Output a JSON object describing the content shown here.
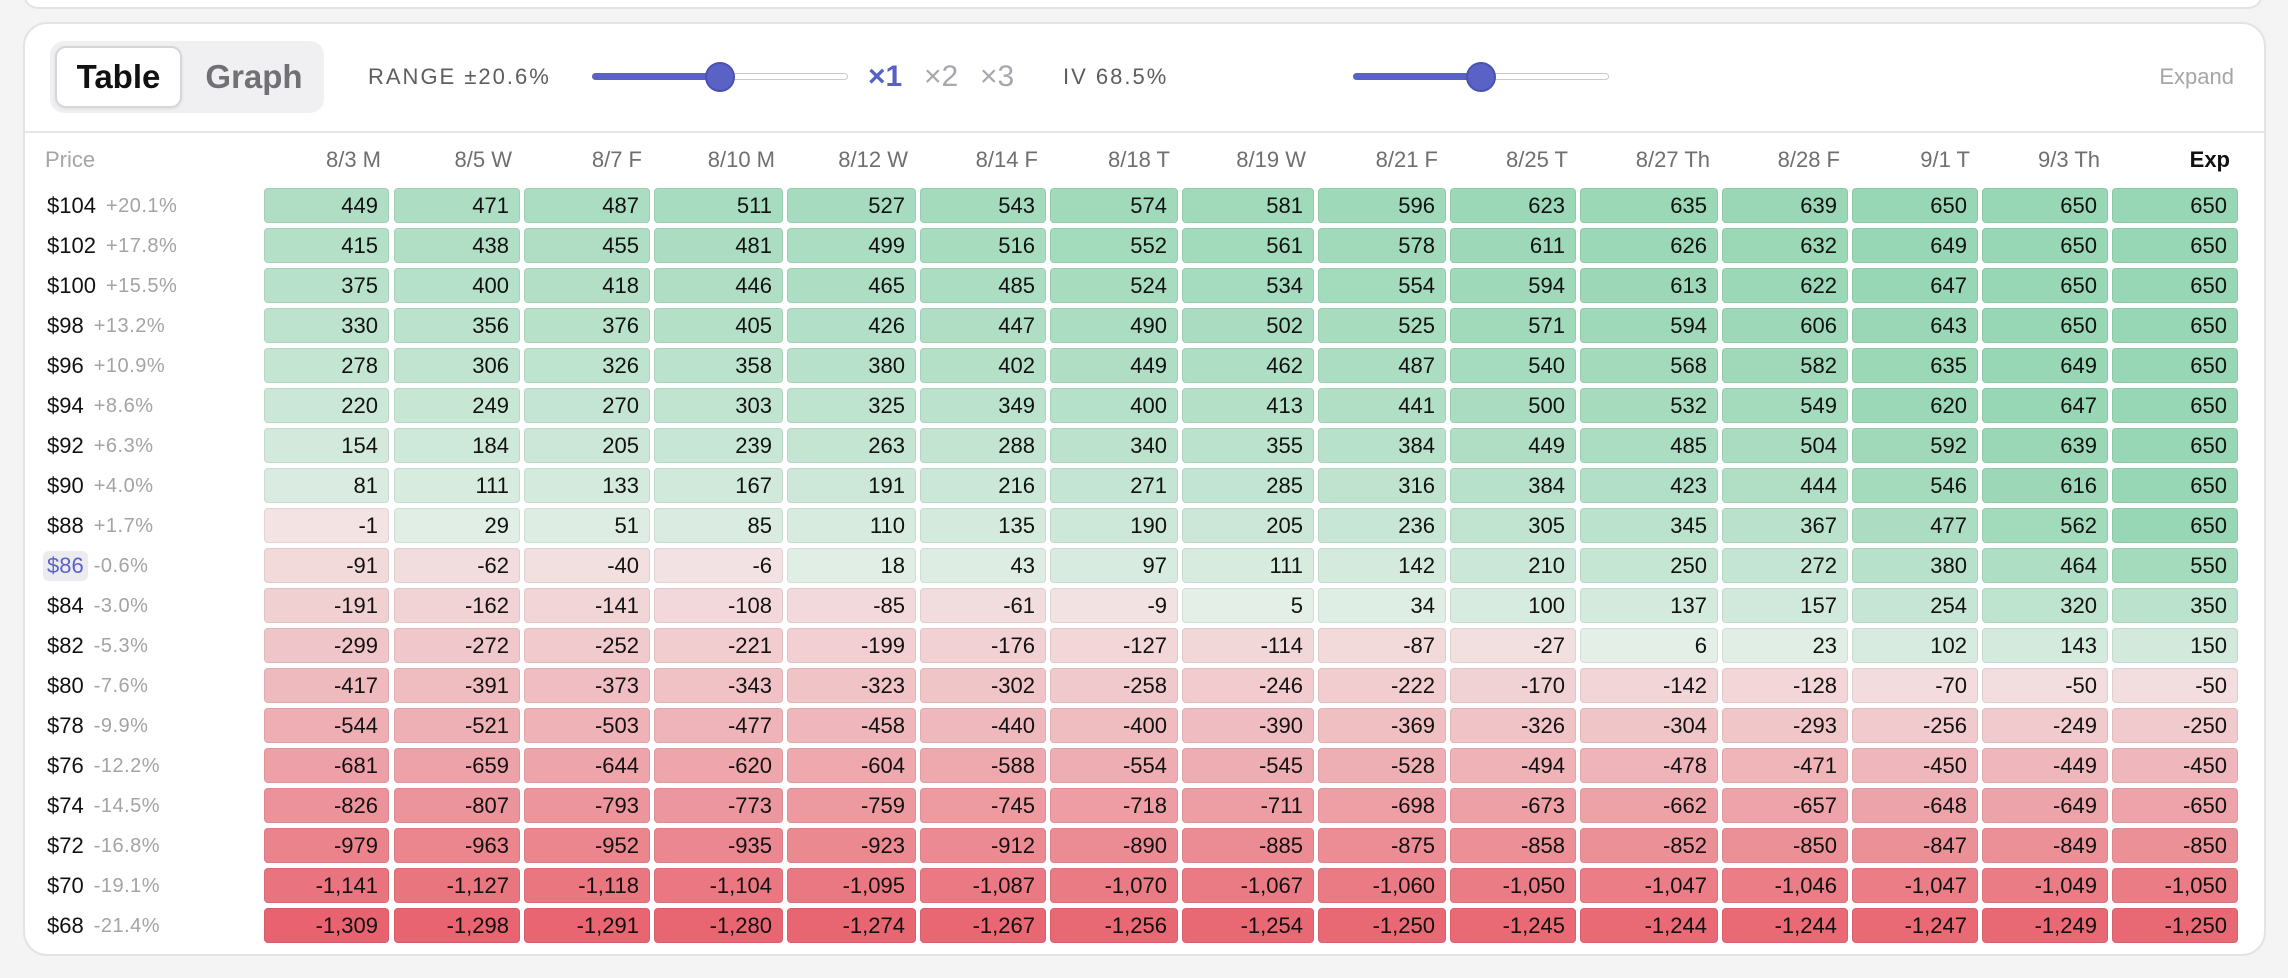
{
  "toolbar": {
    "tabs": [
      "Table",
      "Graph"
    ],
    "range_label": "RANGE ±20.6%",
    "range_level": 0.5,
    "multipliers": [
      "×1",
      "×2",
      "×3"
    ],
    "iv_label": "IV 68.5%",
    "iv_level": 0.5,
    "expand_label": "Expand",
    "accent_color": "#5b62c6"
  },
  "table": {
    "price_header": "Price",
    "current_price": "$86",
    "positive_color": "#98d7b5",
    "negative_color": "#e8636f",
    "columns": [
      "8/3 M",
      "8/5 W",
      "8/7 F",
      "8/10 M",
      "8/12 W",
      "8/14 F",
      "8/18 T",
      "8/19 W",
      "8/21 F",
      "8/25 T",
      "8/27 Th",
      "8/28 F",
      "9/1 T",
      "9/3 Th",
      "Exp"
    ],
    "rows": [
      {
        "price": "$104",
        "pct": "+20.1%",
        "values": [
          "449",
          "471",
          "487",
          "511",
          "527",
          "543",
          "574",
          "581",
          "596",
          "623",
          "635",
          "639",
          "650",
          "650",
          "650"
        ]
      },
      {
        "price": "$102",
        "pct": "+17.8%",
        "values": [
          "415",
          "438",
          "455",
          "481",
          "499",
          "516",
          "552",
          "561",
          "578",
          "611",
          "626",
          "632",
          "649",
          "650",
          "650"
        ]
      },
      {
        "price": "$100",
        "pct": "+15.5%",
        "values": [
          "375",
          "400",
          "418",
          "446",
          "465",
          "485",
          "524",
          "534",
          "554",
          "594",
          "613",
          "622",
          "647",
          "650",
          "650"
        ]
      },
      {
        "price": "$98",
        "pct": "+13.2%",
        "values": [
          "330",
          "356",
          "376",
          "405",
          "426",
          "447",
          "490",
          "502",
          "525",
          "571",
          "594",
          "606",
          "643",
          "650",
          "650"
        ]
      },
      {
        "price": "$96",
        "pct": "+10.9%",
        "values": [
          "278",
          "306",
          "326",
          "358",
          "380",
          "402",
          "449",
          "462",
          "487",
          "540",
          "568",
          "582",
          "635",
          "649",
          "650"
        ]
      },
      {
        "price": "$94",
        "pct": "+8.6%",
        "values": [
          "220",
          "249",
          "270",
          "303",
          "325",
          "349",
          "400",
          "413",
          "441",
          "500",
          "532",
          "549",
          "620",
          "647",
          "650"
        ]
      },
      {
        "price": "$92",
        "pct": "+6.3%",
        "values": [
          "154",
          "184",
          "205",
          "239",
          "263",
          "288",
          "340",
          "355",
          "384",
          "449",
          "485",
          "504",
          "592",
          "639",
          "650"
        ]
      },
      {
        "price": "$90",
        "pct": "+4.0%",
        "values": [
          "81",
          "111",
          "133",
          "167",
          "191",
          "216",
          "271",
          "285",
          "316",
          "384",
          "423",
          "444",
          "546",
          "616",
          "650"
        ]
      },
      {
        "price": "$88",
        "pct": "+1.7%",
        "values": [
          "-1",
          "29",
          "51",
          "85",
          "110",
          "135",
          "190",
          "205",
          "236",
          "305",
          "345",
          "367",
          "477",
          "562",
          "650"
        ]
      },
      {
        "price": "$86",
        "pct": "-0.6%",
        "values": [
          "-91",
          "-62",
          "-40",
          "-6",
          "18",
          "43",
          "97",
          "111",
          "142",
          "210",
          "250",
          "272",
          "380",
          "464",
          "550"
        ]
      },
      {
        "price": "$84",
        "pct": "-3.0%",
        "values": [
          "-191",
          "-162",
          "-141",
          "-108",
          "-85",
          "-61",
          "-9",
          "5",
          "34",
          "100",
          "137",
          "157",
          "254",
          "320",
          "350"
        ]
      },
      {
        "price": "$82",
        "pct": "-5.3%",
        "values": [
          "-299",
          "-272",
          "-252",
          "-221",
          "-199",
          "-176",
          "-127",
          "-114",
          "-87",
          "-27",
          "6",
          "23",
          "102",
          "143",
          "150"
        ]
      },
      {
        "price": "$80",
        "pct": "-7.6%",
        "values": [
          "-417",
          "-391",
          "-373",
          "-343",
          "-323",
          "-302",
          "-258",
          "-246",
          "-222",
          "-170",
          "-142",
          "-128",
          "-70",
          "-50",
          "-50"
        ]
      },
      {
        "price": "$78",
        "pct": "-9.9%",
        "values": [
          "-544",
          "-521",
          "-503",
          "-477",
          "-458",
          "-440",
          "-400",
          "-390",
          "-369",
          "-326",
          "-304",
          "-293",
          "-256",
          "-249",
          "-250"
        ]
      },
      {
        "price": "$76",
        "pct": "-12.2%",
        "values": [
          "-681",
          "-659",
          "-644",
          "-620",
          "-604",
          "-588",
          "-554",
          "-545",
          "-528",
          "-494",
          "-478",
          "-471",
          "-450",
          "-449",
          "-450"
        ]
      },
      {
        "price": "$74",
        "pct": "-14.5%",
        "values": [
          "-826",
          "-807",
          "-793",
          "-773",
          "-759",
          "-745",
          "-718",
          "-711",
          "-698",
          "-673",
          "-662",
          "-657",
          "-648",
          "-649",
          "-650"
        ]
      },
      {
        "price": "$72",
        "pct": "-16.8%",
        "values": [
          "-979",
          "-963",
          "-952",
          "-935",
          "-923",
          "-912",
          "-890",
          "-885",
          "-875",
          "-858",
          "-852",
          "-850",
          "-847",
          "-849",
          "-850"
        ]
      },
      {
        "price": "$70",
        "pct": "-19.1%",
        "values": [
          "-1,141",
          "-1,127",
          "-1,118",
          "-1,104",
          "-1,095",
          "-1,087",
          "-1,070",
          "-1,067",
          "-1,060",
          "-1,050",
          "-1,047",
          "-1,046",
          "-1,047",
          "-1,049",
          "-1,050"
        ]
      },
      {
        "price": "$68",
        "pct": "-21.4%",
        "values": [
          "-1,309",
          "-1,298",
          "-1,291",
          "-1,280",
          "-1,274",
          "-1,267",
          "-1,256",
          "-1,254",
          "-1,250",
          "-1,245",
          "-1,244",
          "-1,244",
          "-1,247",
          "-1,249",
          "-1,250"
        ]
      }
    ]
  }
}
